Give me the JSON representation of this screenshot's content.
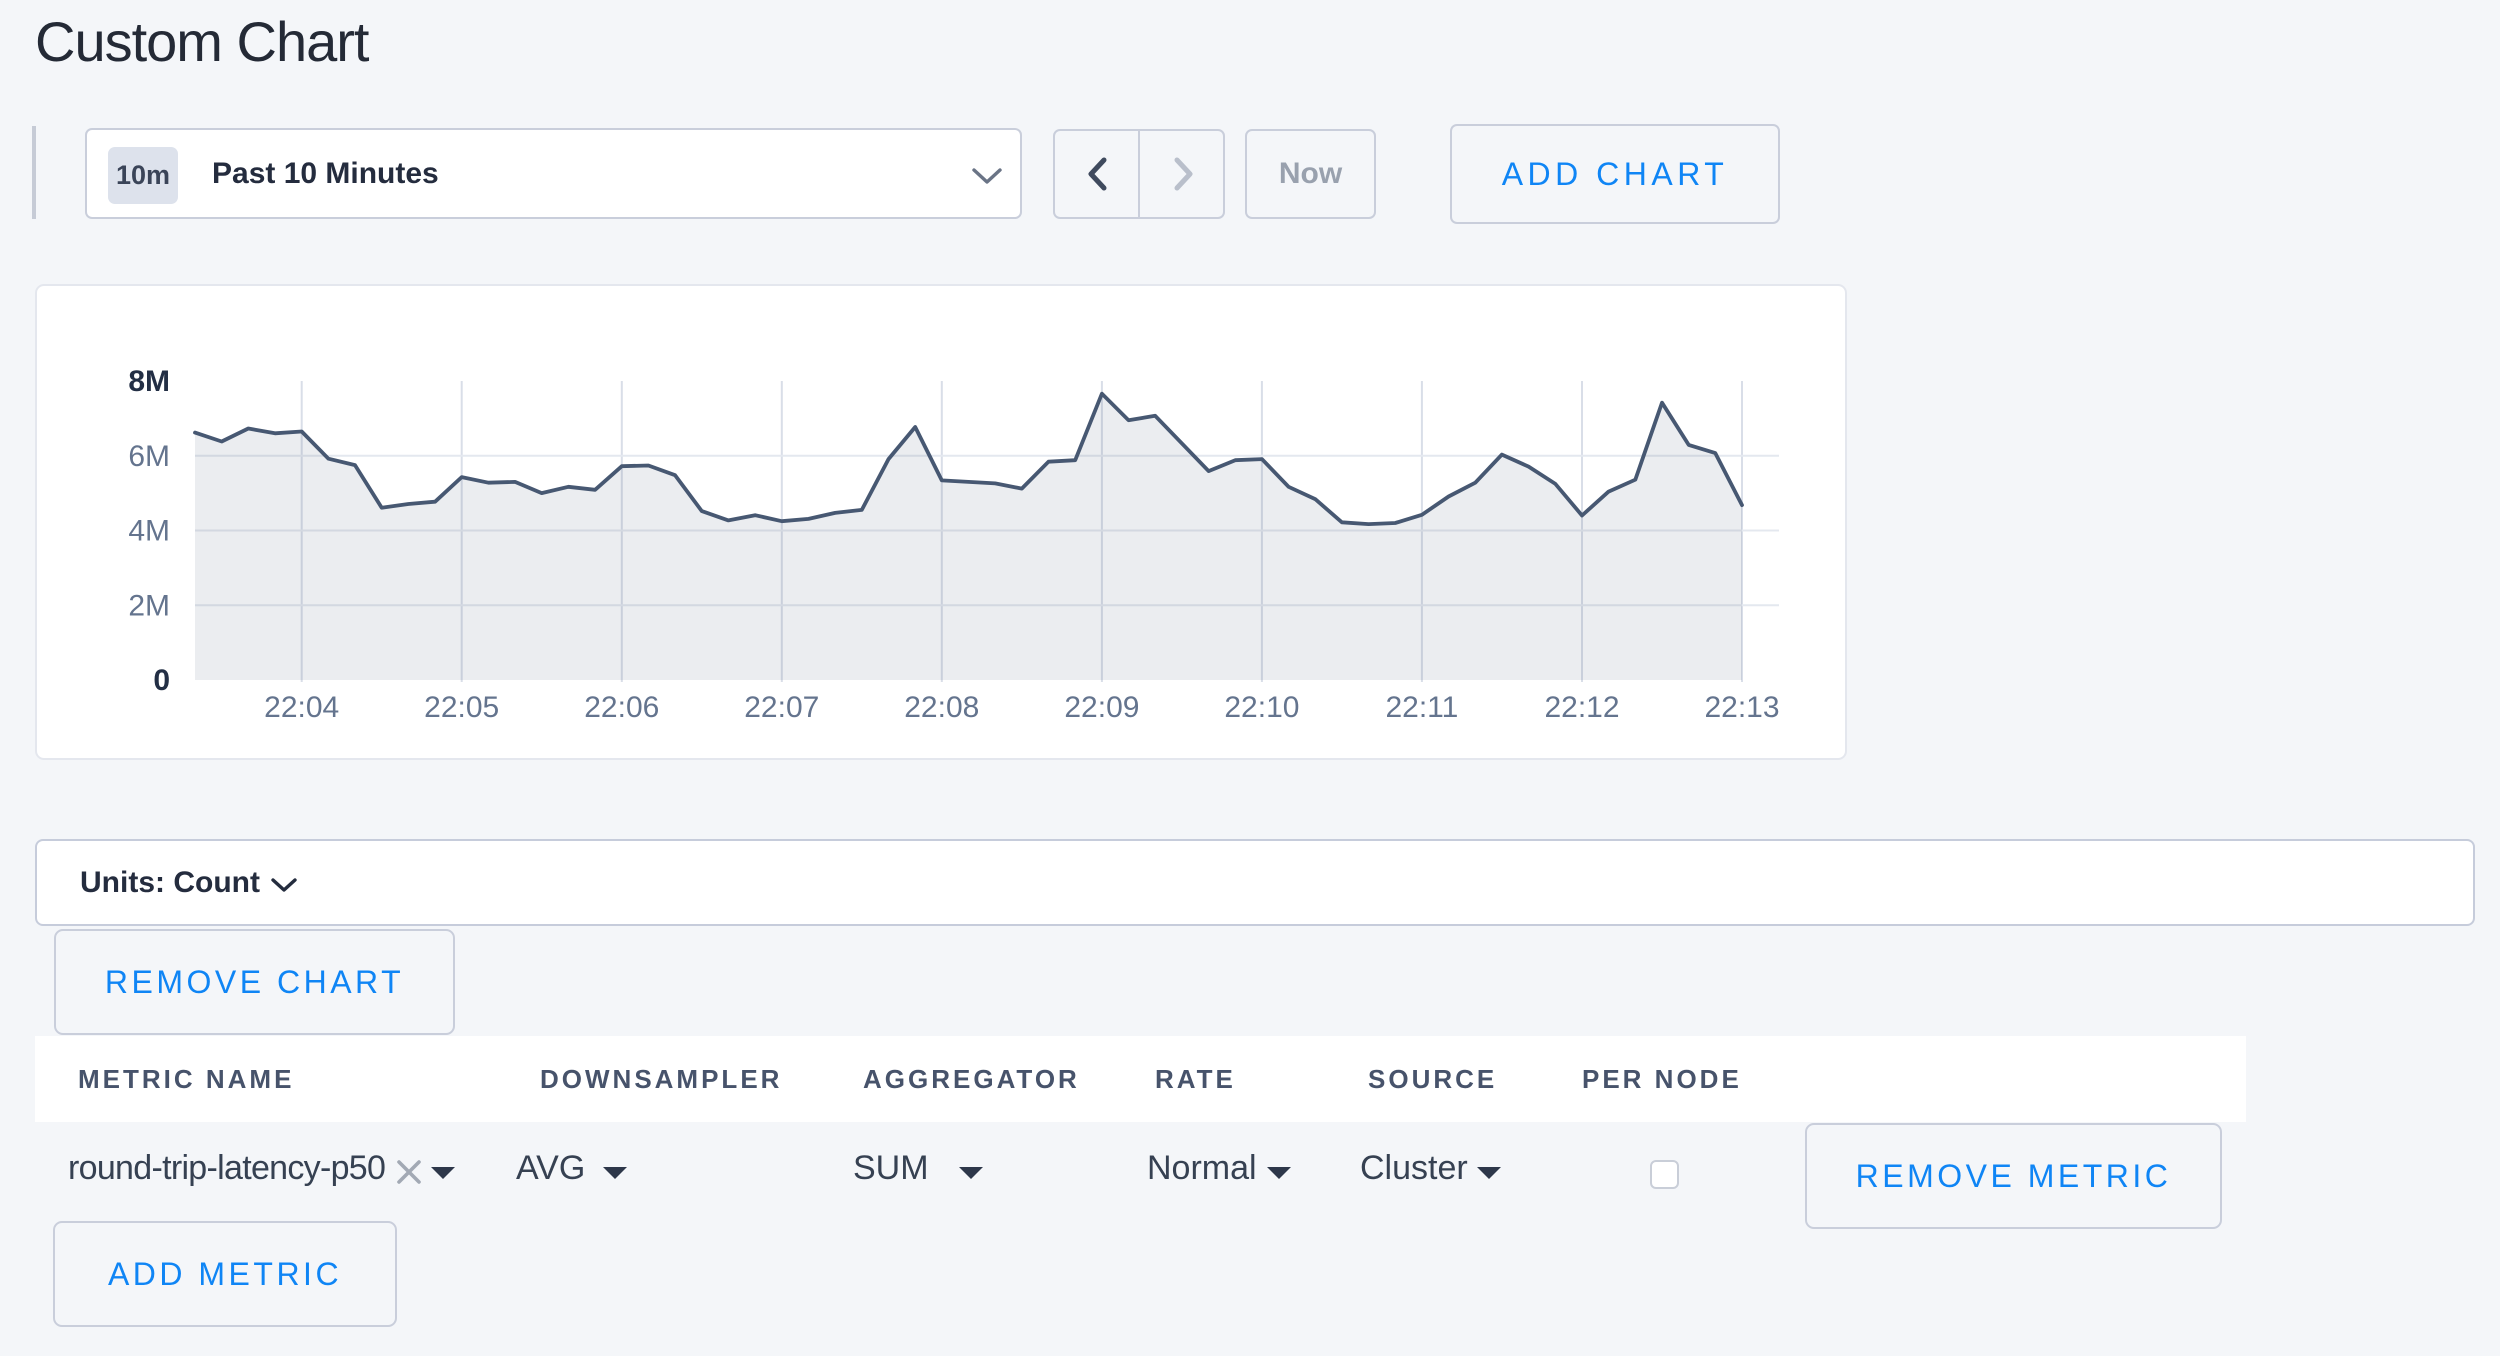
{
  "page": {
    "title": "Custom Chart"
  },
  "colors": {
    "background": "#f4f6f9",
    "accent_blue": "#0f85f5",
    "chart_line": "#475872",
    "chart_fill": "rgba(71,88,114,0.11)",
    "grid_vertical": "#d9dee8",
    "grid_horizontal": "#e4e8ef",
    "axis_label": "#64748e",
    "axis_label_strong": "#232f45"
  },
  "icons": {
    "time_selector": "chevron-down-icon",
    "units_selector": "chevron-down-icon",
    "prev": "chevron-left-icon",
    "next": "chevron-right-icon",
    "metric_clear": "x-icon",
    "dropdown_caret": "caret-down-icon"
  },
  "toolbar": {
    "time_selector": {
      "badge": "10m",
      "label": "Past 10 Minutes"
    },
    "now_label": "Now",
    "add_chart_label": "ADD CHART"
  },
  "chart_data": {
    "type": "area",
    "title": "",
    "xlabel": "",
    "ylabel": "",
    "legend": "none",
    "grid": true,
    "ylim": [
      0,
      8000000
    ],
    "x_start_label": "22:03:20",
    "x_step_seconds": 10,
    "x_total_seconds": 580,
    "x_ticks": [
      {
        "t": 40,
        "label": "22:04"
      },
      {
        "t": 100,
        "label": "22:05"
      },
      {
        "t": 160,
        "label": "22:06"
      },
      {
        "t": 220,
        "label": "22:07"
      },
      {
        "t": 280,
        "label": "22:08"
      },
      {
        "t": 340,
        "label": "22:09"
      },
      {
        "t": 400,
        "label": "22:10"
      },
      {
        "t": 460,
        "label": "22:11"
      },
      {
        "t": 520,
        "label": "22:12"
      },
      {
        "t": 580,
        "label": "22:13"
      }
    ],
    "y_ticks": [
      {
        "v": 0,
        "label": "0",
        "bold": true,
        "grid": false
      },
      {
        "v": 2000000,
        "label": "2M",
        "bold": false,
        "grid": true
      },
      {
        "v": 4000000,
        "label": "4M",
        "bold": false,
        "grid": true
      },
      {
        "v": 6000000,
        "label": "6M",
        "bold": false,
        "grid": true
      },
      {
        "v": 8000000,
        "label": "8M",
        "bold": true,
        "grid": false
      }
    ],
    "series": [
      {
        "name": "round-trip-latency-p50",
        "values": [
          6620000,
          6380000,
          6730000,
          6600000,
          6650000,
          5920000,
          5750000,
          4610000,
          4710000,
          4770000,
          5430000,
          5280000,
          5300000,
          5000000,
          5170000,
          5090000,
          5720000,
          5740000,
          5480000,
          4520000,
          4270000,
          4410000,
          4250000,
          4310000,
          4470000,
          4550000,
          5910000,
          6770000,
          5340000,
          5300000,
          5260000,
          5120000,
          5840000,
          5880000,
          7660000,
          6950000,
          7070000,
          6330000,
          5590000,
          5880000,
          5910000,
          5170000,
          4840000,
          4220000,
          4170000,
          4200000,
          4420000,
          4910000,
          5280000,
          6030000,
          5710000,
          5250000,
          4400000,
          5040000,
          5360000,
          7420000,
          6290000,
          6070000,
          4680000
        ]
      }
    ]
  },
  "units_bar": {
    "label": "Units: Count"
  },
  "remove_chart_label": "REMOVE CHART",
  "metrics_table": {
    "columns": [
      "METRIC NAME",
      "DOWNSAMPLER",
      "AGGREGATOR",
      "RATE",
      "SOURCE",
      "PER NODE"
    ],
    "rows": [
      {
        "metric_name": "round-trip-latency-p50",
        "downsampler": "AVG",
        "aggregator": "SUM",
        "rate": "Normal",
        "source": "Cluster",
        "per_node_checked": false,
        "remove_label": "REMOVE METRIC"
      }
    ],
    "add_metric_label": "ADD METRIC"
  }
}
